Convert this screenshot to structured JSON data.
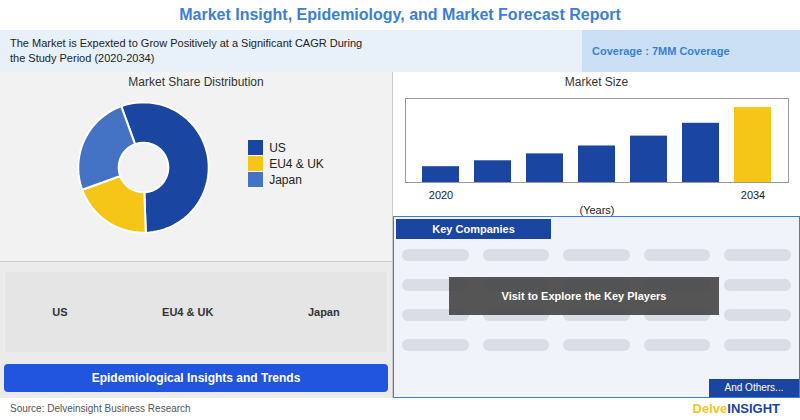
{
  "title": "Market Insight, Epidemiology, and Market Forecast Report",
  "subtitle": [
    "The Market is Expexted to Grow Positively at a Significant CAGR During",
    "the Study Period (2020-2034)"
  ],
  "annotations": [
    "Coverage : 7MM Coverage",
    "US",
    "EU4 & UK",
    "Japan",
    "Epidemiological Insights and Trends",
    "Key Companies",
    "Visit to Explore the Key Players",
    "And Others...",
    "Source: Delveinsight Business Research",
    "Delve",
    "INSIGHT"
  ],
  "chart_data": [
    {
      "type": "pie",
      "title": "Market Share Distribution",
      "categories": [
        "US",
        "EU4 & UK",
        "Japan"
      ],
      "values": [
        0.55,
        0.2,
        0.25
      ],
      "colors": [
        "#1a45a0",
        "#f5c518",
        "#4472c4"
      ],
      "legend": "right"
    },
    {
      "type": "bar",
      "title": "Market Size",
      "categories": [
        "2020",
        null,
        null,
        null,
        null,
        null,
        "2034"
      ],
      "values": [
        0.8,
        1.1,
        1.45,
        1.85,
        2.35,
        3.0,
        3.8
      ],
      "colors": [
        "#1a45a0",
        "#1a45a0",
        "#1a45a0",
        "#1a45a0",
        "#1a45a0",
        "#1a45a0",
        "#f5c518"
      ],
      "xlabel": "(Years)",
      "ylim": [
        0,
        4.256
      ],
      "tick_labels": "x"
    }
  ]
}
